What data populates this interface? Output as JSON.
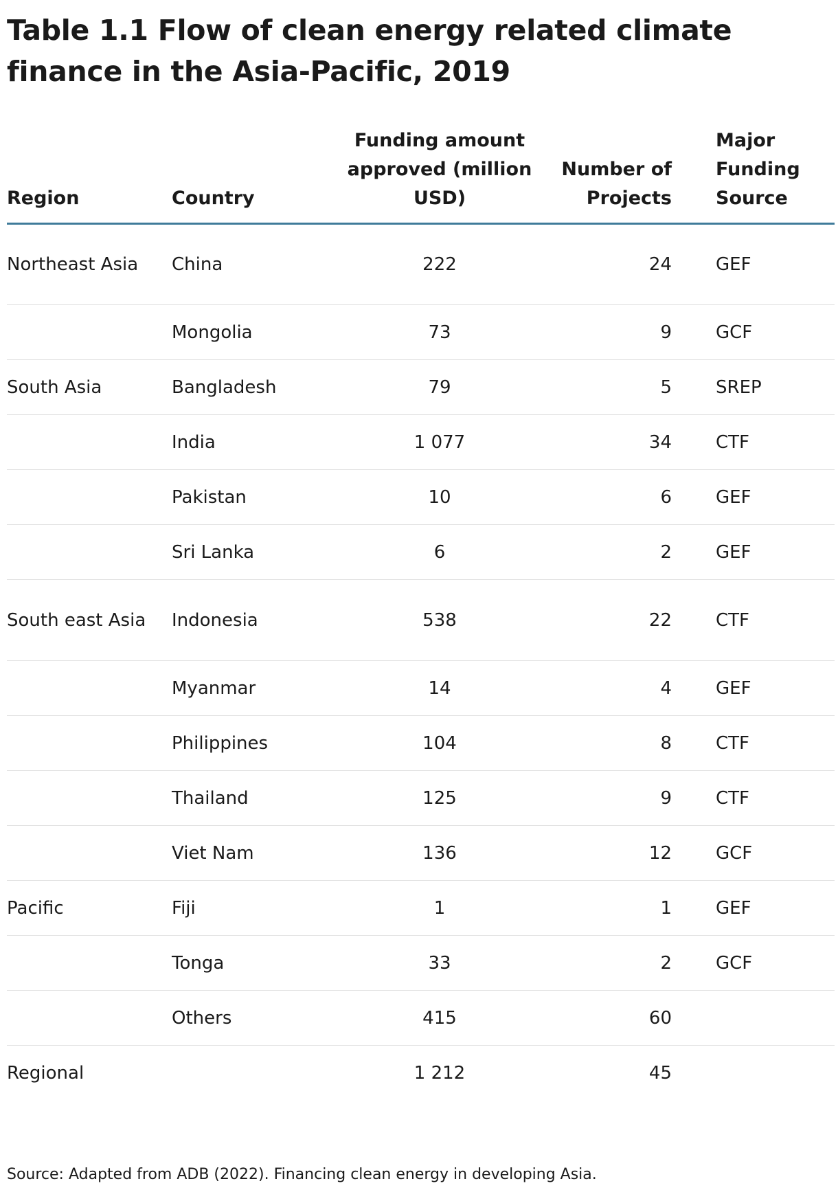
{
  "title": "Table 1.1 Flow of clean energy related climate finance in the Asia-Pacific, 2019",
  "table": {
    "headers": {
      "region": "Region",
      "country": "Country",
      "amount": "Funding amount approved (million USD)",
      "projects": "Number of Projects",
      "source": "Major Funding Source"
    },
    "rows": [
      {
        "region": "Northeast Asia",
        "country": "China",
        "amount": "222",
        "projects": "24",
        "source": "GEF"
      },
      {
        "region": "",
        "country": "Mongolia",
        "amount": "73",
        "projects": "9",
        "source": "GCF"
      },
      {
        "region": "South Asia",
        "country": "Bangladesh",
        "amount": "79",
        "projects": "5",
        "source": "SREP"
      },
      {
        "region": "",
        "country": "India",
        "amount": "1 077",
        "projects": "34",
        "source": "CTF"
      },
      {
        "region": "",
        "country": "Pakistan",
        "amount": "10",
        "projects": "6",
        "source": "GEF"
      },
      {
        "region": "",
        "country": "Sri Lanka",
        "amount": "6",
        "projects": "2",
        "source": "GEF"
      },
      {
        "region": "South east Asia",
        "country": "Indonesia",
        "amount": "538",
        "projects": "22",
        "source": "CTF"
      },
      {
        "region": "",
        "country": "Myanmar",
        "amount": "14",
        "projects": "4",
        "source": "GEF"
      },
      {
        "region": "",
        "country": "Philippines",
        "amount": "104",
        "projects": "8",
        "source": "CTF"
      },
      {
        "region": "",
        "country": "Thailand",
        "amount": "125",
        "projects": "9",
        "source": "CTF"
      },
      {
        "region": "",
        "country": "Viet Nam",
        "amount": "136",
        "projects": "12",
        "source": "GCF"
      },
      {
        "region": "Pacific",
        "country": "Fiji",
        "amount": "1",
        "projects": "1",
        "source": "GEF"
      },
      {
        "region": "",
        "country": "Tonga",
        "amount": "33",
        "projects": "2",
        "source": "GCF"
      },
      {
        "region": "",
        "country": "Others",
        "amount": "415",
        "projects": "60",
        "source": ""
      },
      {
        "region": "Regional",
        "country": "",
        "amount": "1 212",
        "projects": "45",
        "source": ""
      }
    ]
  },
  "source_note": "Source: Adapted from ADB (2022). Financing clean energy in developing Asia."
}
